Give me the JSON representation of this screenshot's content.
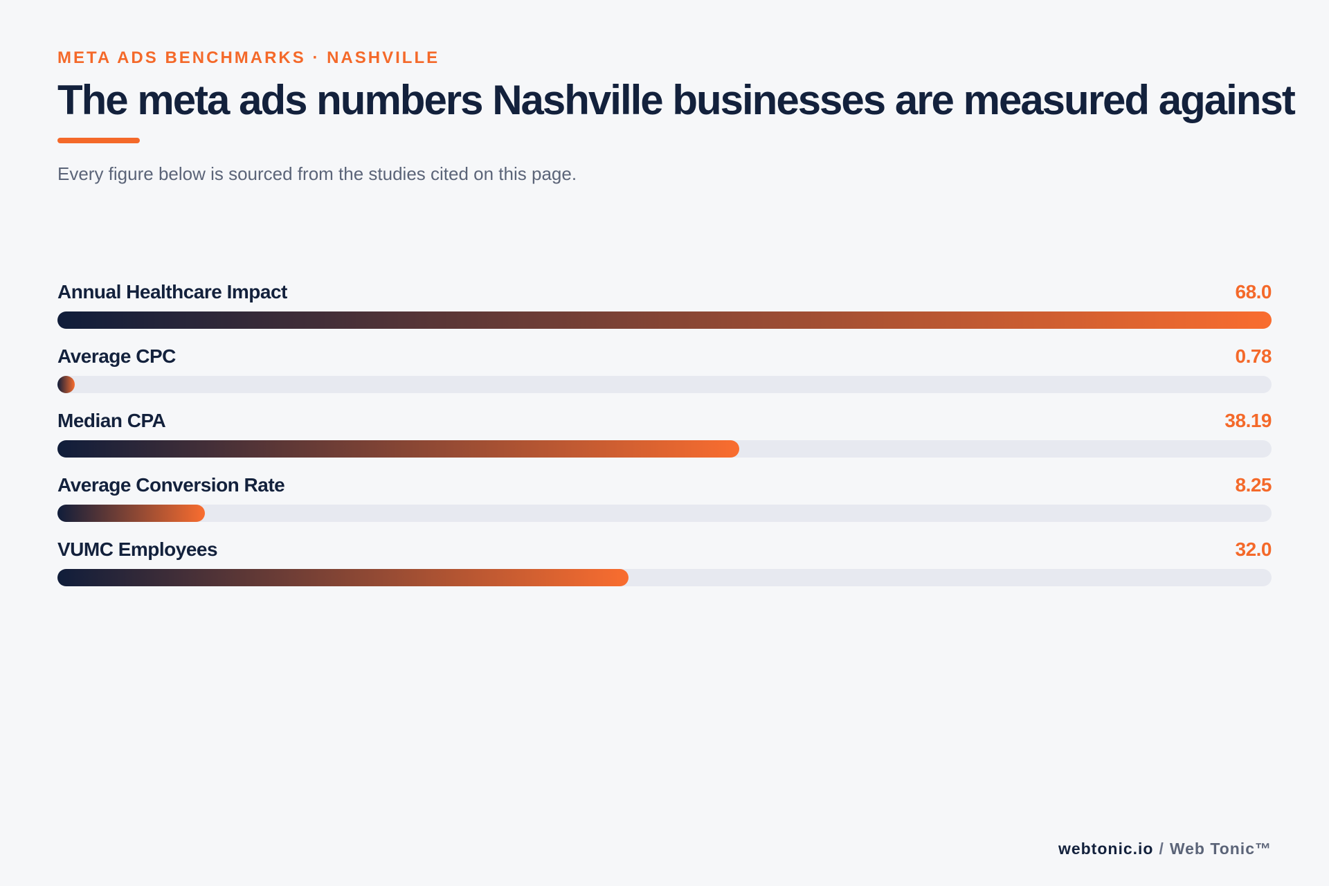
{
  "header": {
    "eyebrow": "META ADS BENCHMARKS · NASHVILLE",
    "title": "The meta ads numbers Nashville businesses are measured against",
    "subtitle": "Every figure below is sourced from the studies cited on this page."
  },
  "colors": {
    "accent": "#f4692a",
    "navy": "#13213c",
    "track": "#e7e9f0",
    "gradient_start": "#101d3a",
    "gradient_end": "#f96d2f",
    "background": "#f6f7f9"
  },
  "chart_data": {
    "type": "bar",
    "orientation": "horizontal",
    "title": "The meta ads numbers Nashville businesses are measured against",
    "categories": [
      "Annual Healthcare Impact",
      "Average CPC",
      "Median CPA",
      "Average Conversion Rate",
      "VUMC Employees"
    ],
    "values": [
      68.0,
      0.78,
      38.19,
      8.25,
      32.0
    ],
    "value_labels": [
      "68.0",
      "0.78",
      "38.19",
      "8.25",
      "32.0"
    ],
    "xlim": [
      0,
      68.0
    ],
    "grid": false,
    "legend": "none"
  },
  "footer": {
    "brand": "webtonic.io",
    "separator": "/",
    "company": "Web Tonic™"
  }
}
